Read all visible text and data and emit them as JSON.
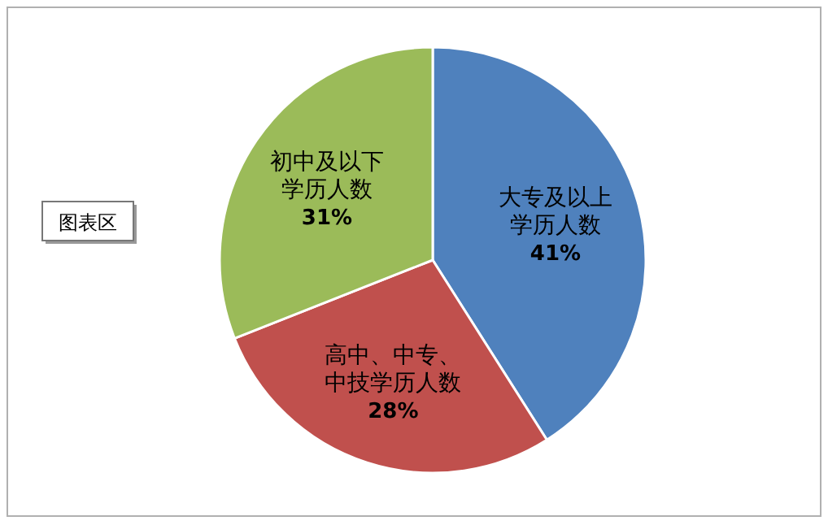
{
  "chart_data": {
    "type": "pie",
    "categories": [
      "大专及以上学历人数",
      "高中、中专、中技学历人数",
      "初中及以下学历人数"
    ],
    "values": [
      41,
      28,
      31
    ],
    "colors": [
      "#4f81bd",
      "#c0504d",
      "#9bbb59"
    ],
    "value_labels": [
      "41%",
      "28%",
      "31%"
    ],
    "annotations": [
      "图表区"
    ]
  }
}
